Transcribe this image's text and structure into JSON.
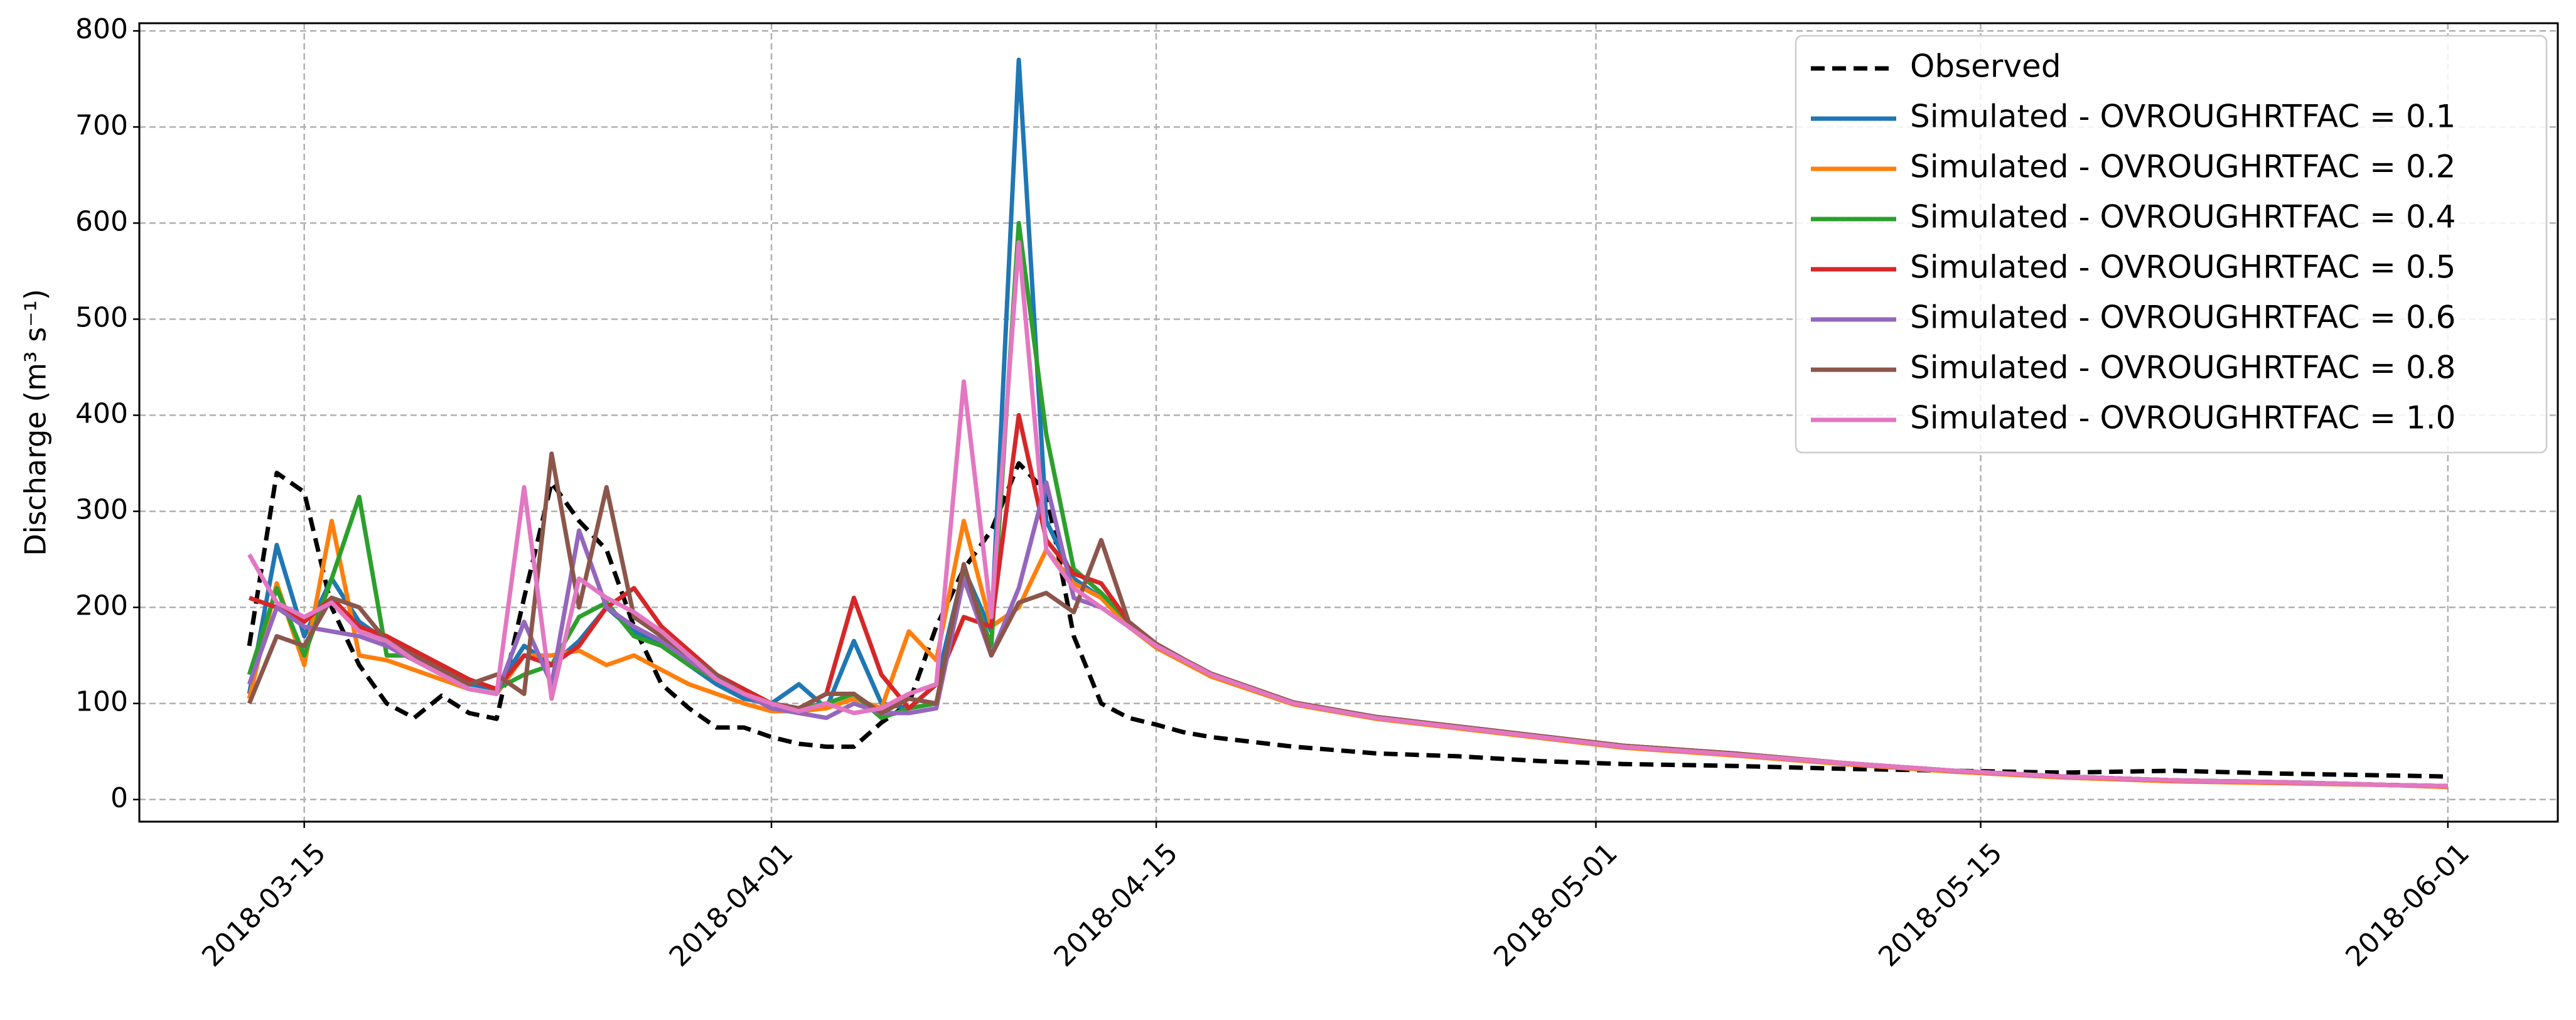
{
  "chart_data": {
    "type": "line",
    "ylabel": "Discharge (m³ s⁻¹)",
    "x": [
      "2018-03-13",
      "2018-03-14",
      "2018-03-15",
      "2018-03-16",
      "2018-03-17",
      "2018-03-18",
      "2018-03-19",
      "2018-03-20",
      "2018-03-21",
      "2018-03-22",
      "2018-03-23",
      "2018-03-24",
      "2018-03-25",
      "2018-03-26",
      "2018-03-27",
      "2018-03-28",
      "2018-03-29",
      "2018-03-30",
      "2018-03-31",
      "2018-04-01",
      "2018-04-02",
      "2018-04-03",
      "2018-04-04",
      "2018-04-05",
      "2018-04-06",
      "2018-04-07",
      "2018-04-08",
      "2018-04-09",
      "2018-04-10",
      "2018-04-11",
      "2018-04-12",
      "2018-04-13",
      "2018-04-14",
      "2018-04-15",
      "2018-04-16",
      "2018-04-17",
      "2018-04-20",
      "2018-04-23",
      "2018-04-26",
      "2018-04-29",
      "2018-05-02",
      "2018-05-06",
      "2018-05-10",
      "2018-05-14",
      "2018-05-18",
      "2018-05-22",
      "2018-05-26",
      "2018-05-30",
      "2018-06-01"
    ],
    "series": [
      {
        "name": "Observed",
        "color": "#000000",
        "dashed": true,
        "values": [
          160,
          340,
          320,
          200,
          140,
          100,
          85,
          108,
          90,
          84,
          210,
          330,
          290,
          260,
          180,
          120,
          95,
          75,
          75,
          65,
          58,
          55,
          55,
          80,
          100,
          180,
          240,
          280,
          350,
          320,
          170,
          100,
          85,
          78,
          70,
          65,
          55,
          48,
          45,
          40,
          37,
          35,
          32,
          30,
          28,
          30,
          27,
          25,
          24
        ]
      },
      {
        "name": "Simulated - OVROUGHRTFAC = 0.1",
        "color": "#1f77b4",
        "values": [
          110,
          265,
          170,
          230,
          185,
          165,
          150,
          135,
          120,
          115,
          160,
          140,
          165,
          200,
          175,
          160,
          140,
          120,
          105,
          100,
          120,
          95,
          165,
          100,
          95,
          120,
          240,
          175,
          770,
          290,
          230,
          210,
          180,
          160,
          145,
          130,
          100,
          85,
          75,
          65,
          55,
          47,
          38,
          30,
          24,
          20,
          18,
          15,
          14
        ]
      },
      {
        "name": "Simulated - OVROUGHRTFAC = 0.2",
        "color": "#ff7f0e",
        "values": [
          105,
          225,
          140,
          290,
          150,
          145,
          135,
          125,
          115,
          110,
          150,
          150,
          155,
          140,
          150,
          135,
          120,
          110,
          100,
          92,
          92,
          95,
          105,
          95,
          175,
          145,
          290,
          180,
          200,
          260,
          225,
          210,
          180,
          158,
          143,
          128,
          99,
          84,
          74,
          64,
          54,
          46,
          37,
          29,
          23,
          19,
          17,
          15,
          13
        ]
      },
      {
        "name": "Simulated - OVROUGHRTFAC = 0.4",
        "color": "#2ca02c",
        "values": [
          130,
          220,
          150,
          230,
          315,
          150,
          150,
          140,
          125,
          115,
          130,
          140,
          190,
          205,
          170,
          160,
          140,
          125,
          110,
          100,
          95,
          100,
          110,
          85,
          95,
          100,
          240,
          160,
          600,
          380,
          240,
          215,
          185,
          162,
          146,
          131,
          101,
          86,
          76,
          66,
          56,
          48,
          38,
          30,
          24,
          20,
          18,
          15,
          14
        ]
      },
      {
        "name": "Simulated - OVROUGHRTFAC = 0.5",
        "color": "#d62728",
        "values": [
          210,
          200,
          185,
          210,
          180,
          170,
          155,
          140,
          125,
          115,
          150,
          140,
          160,
          200,
          220,
          180,
          155,
          130,
          115,
          100,
          95,
          110,
          210,
          130,
          95,
          120,
          190,
          180,
          400,
          270,
          235,
          225,
          185,
          162,
          146,
          131,
          101,
          86,
          76,
          66,
          56,
          48,
          38,
          30,
          24,
          20,
          18,
          15,
          14
        ]
      },
      {
        "name": "Simulated - OVROUGHRTFAC = 0.6",
        "color": "#9467bd",
        "values": [
          120,
          200,
          180,
          175,
          170,
          160,
          145,
          130,
          115,
          110,
          185,
          120,
          280,
          200,
          180,
          165,
          145,
          125,
          110,
          95,
          90,
          85,
          100,
          90,
          90,
          95,
          230,
          150,
          220,
          330,
          210,
          200,
          180,
          160,
          145,
          130,
          100,
          85,
          75,
          65,
          55,
          47,
          38,
          30,
          24,
          20,
          18,
          15,
          14
        ]
      },
      {
        "name": "Simulated - OVROUGHRTFAC = 0.8",
        "color": "#8c564b",
        "values": [
          100,
          170,
          160,
          210,
          200,
          165,
          150,
          135,
          120,
          130,
          110,
          360,
          200,
          325,
          190,
          170,
          150,
          130,
          110,
          100,
          95,
          110,
          110,
          90,
          105,
          100,
          245,
          150,
          205,
          215,
          195,
          270,
          185,
          162,
          146,
          131,
          101,
          86,
          76,
          66,
          56,
          48,
          38,
          30,
          24,
          20,
          18,
          15,
          14
        ]
      },
      {
        "name": "Simulated - OVROUGHRTFAC = 1.0",
        "color": "#e377c2",
        "values": [
          255,
          205,
          190,
          205,
          175,
          165,
          145,
          130,
          115,
          110,
          325,
          105,
          230,
          210,
          195,
          175,
          150,
          125,
          110,
          100,
          92,
          100,
          90,
          95,
          110,
          120,
          435,
          190,
          580,
          260,
          220,
          200,
          180,
          160,
          145,
          130,
          100,
          85,
          75,
          65,
          55,
          47,
          38,
          30,
          24,
          20,
          18,
          15,
          14
        ]
      }
    ],
    "xlim": [
      "2018-03-09",
      "2018-06-05"
    ],
    "xticks": [
      "2018-03-15",
      "2018-04-01",
      "2018-04-15",
      "2018-05-01",
      "2018-05-15",
      "2018-06-01"
    ],
    "ylim": [
      -23,
      808
    ],
    "yticks": [
      0,
      100,
      200,
      300,
      400,
      500,
      600,
      700,
      800
    ],
    "grid": true,
    "legend": "upper right"
  }
}
